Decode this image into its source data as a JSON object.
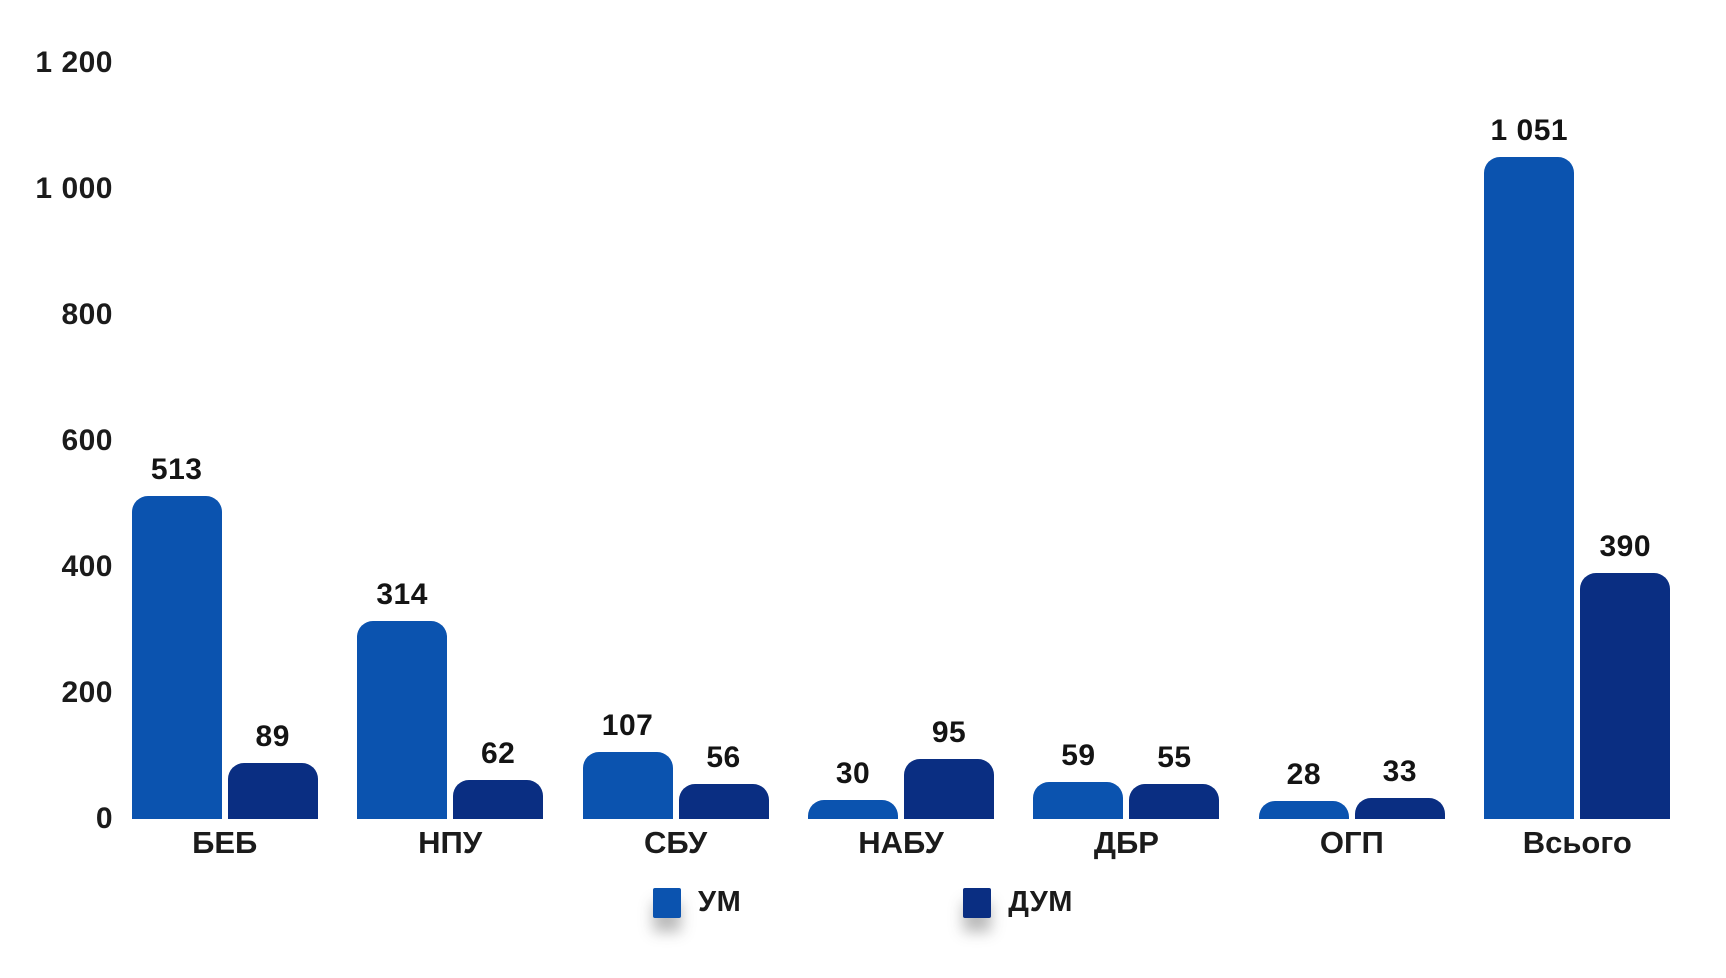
{
  "chart_data": {
    "type": "bar",
    "title": "",
    "xlabel": "",
    "ylabel": "",
    "categories": [
      "БЕБ",
      "НПУ",
      "СБУ",
      "НАБУ",
      "ДБР",
      "ОГП",
      "Всього"
    ],
    "series": [
      {
        "name": "УМ",
        "color": "#0b53af",
        "values": [
          513,
          314,
          107,
          30,
          59,
          28,
          1051
        ],
        "value_labels": [
          "513",
          "314",
          "107",
          "30",
          "59",
          "28",
          "1 051"
        ]
      },
      {
        "name": "ДУМ",
        "color": "#0a2e82",
        "values": [
          89,
          62,
          56,
          95,
          55,
          33,
          390
        ],
        "value_labels": [
          "89",
          "62",
          "56",
          "95",
          "55",
          "33",
          "390"
        ]
      }
    ],
    "ylim": [
      0,
      1200
    ],
    "y_ticks": [
      {
        "value": 0,
        "label": "0"
      },
      {
        "value": 200,
        "label": "200"
      },
      {
        "value": 400,
        "label": "400"
      },
      {
        "value": 600,
        "label": "600"
      },
      {
        "value": 800,
        "label": "800"
      },
      {
        "value": 1000,
        "label": "1 000"
      },
      {
        "value": 1200,
        "label": "1 200"
      }
    ],
    "grid": false,
    "legend_position": "bottom"
  },
  "colors": {
    "background": "#ffffff",
    "text": "#1b1b1b",
    "series_um": "#0b53af",
    "series_dum": "#0a2e82"
  }
}
